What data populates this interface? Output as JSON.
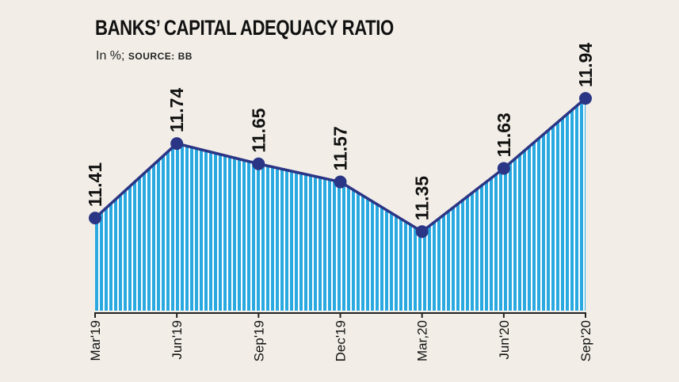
{
  "chart_data": {
    "type": "area",
    "title": "BANKS’ CAPITAL ADEQUACY RATIO",
    "subtitle_unit": "In %;",
    "subtitle_source": "SOURCE: BB",
    "categories": [
      "Mar'19",
      "Jun'19",
      "Sep'19",
      "Dec'19",
      "Mar,20",
      "Jun'20",
      "Sep'20"
    ],
    "values": [
      11.41,
      11.74,
      11.65,
      11.57,
      11.35,
      11.63,
      11.94
    ],
    "data_labels": [
      "11.41",
      "11.74",
      "11.65",
      "11.57",
      "11.35",
      "11.63",
      "11.94"
    ],
    "ylim": [
      11.0,
      12.0
    ],
    "grid": false,
    "colors": {
      "fill": "#2aa9e0",
      "line": "#2b3585",
      "marker": "#2b3585",
      "background": "#f2eee7"
    }
  }
}
